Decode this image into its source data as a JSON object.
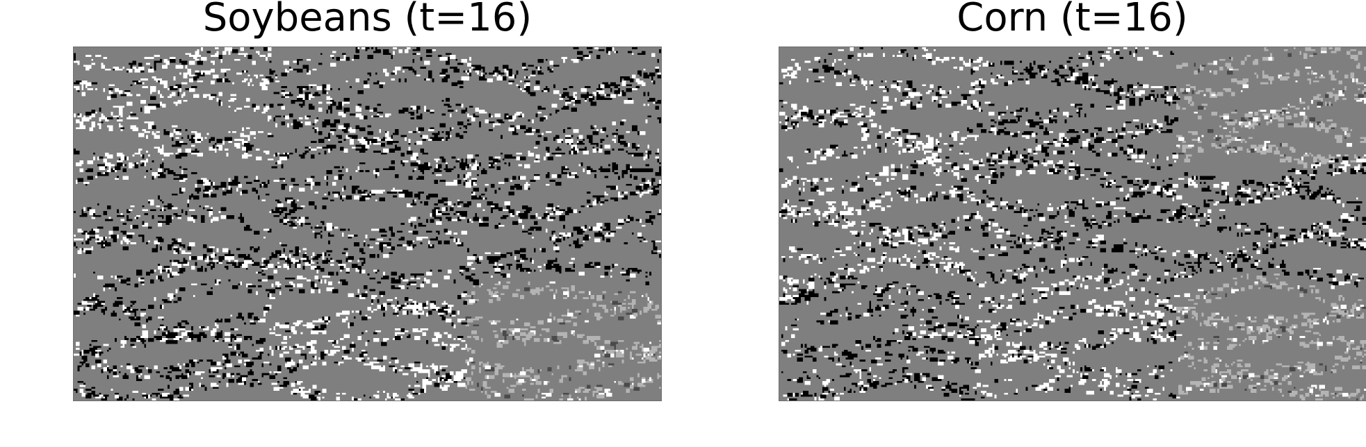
{
  "panels": [
    {
      "title": "Soybeans (t=16)",
      "image_description_icon": "crop-class-map-image"
    },
    {
      "title": "Corn (t=16)",
      "image_description_icon": "crop-class-map-image"
    }
  ],
  "colors": {
    "background": "#7f7f7f",
    "light": "#b4b4b4",
    "white": "#ffffff",
    "black": "#000000",
    "dark": "#4a4a4a"
  }
}
